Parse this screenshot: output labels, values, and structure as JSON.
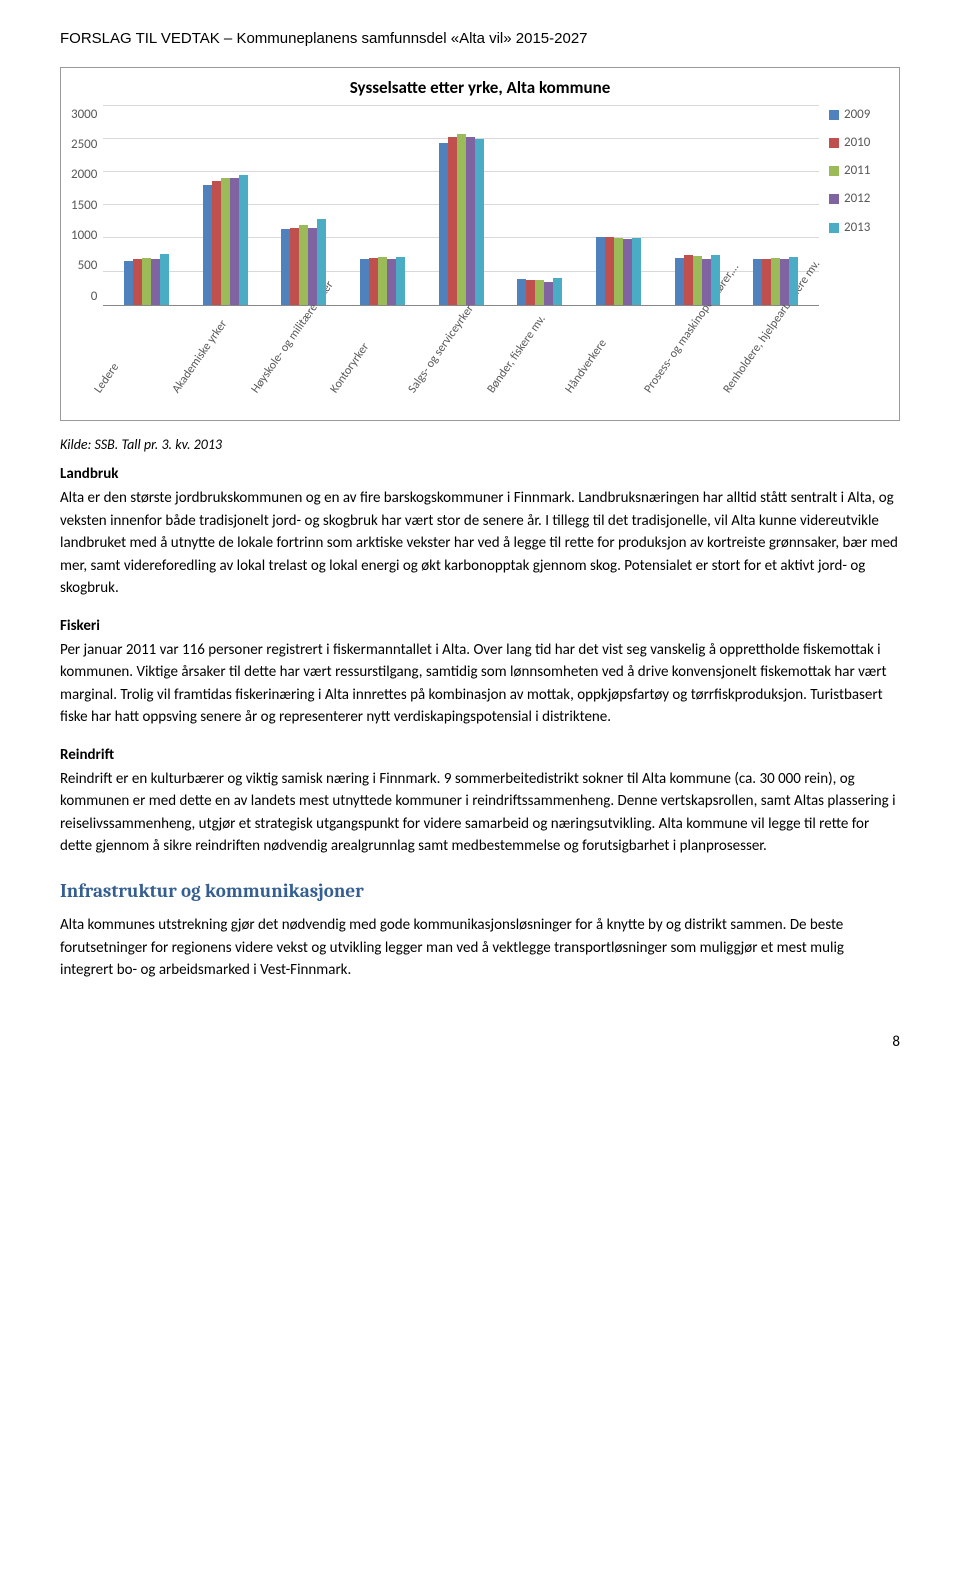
{
  "header": "FORSLAG TIL VEDTAK – Kommuneplanens samfunnsdel «Alta vil» 2015-2027",
  "chart": {
    "title": "Sysselsatte etter yrke, Alta kommune",
    "ylim": [
      0,
      3000
    ],
    "ytick_step": 500,
    "yticks": [
      "3000",
      "2500",
      "2000",
      "1500",
      "1000",
      "500",
      "0"
    ],
    "grid_color": "#d9d9d9",
    "axis_color": "#888888",
    "label_color": "#595959",
    "series": [
      {
        "label": "2009",
        "color": "#4f81bd"
      },
      {
        "label": "2010",
        "color": "#c0504d"
      },
      {
        "label": "2011",
        "color": "#9bbb59"
      },
      {
        "label": "2012",
        "color": "#8064a2"
      },
      {
        "label": "2013",
        "color": "#4bacc6"
      }
    ],
    "categories": [
      {
        "label": "Ledere",
        "values": [
          650,
          680,
          700,
          680,
          760
        ]
      },
      {
        "label": "Akademiske yrker",
        "values": [
          1800,
          1850,
          1900,
          1900,
          1950
        ]
      },
      {
        "label": "Høyskole- og militære yrker",
        "values": [
          1140,
          1150,
          1200,
          1150,
          1280
        ]
      },
      {
        "label": "Kontoryrker",
        "values": [
          680,
          700,
          710,
          680,
          720
        ]
      },
      {
        "label": "Salgs- og serviceyrker",
        "values": [
          2420,
          2520,
          2560,
          2510,
          2480
        ]
      },
      {
        "label": "Bønder, fiskere mv.",
        "values": [
          380,
          370,
          370,
          340,
          400
        ]
      },
      {
        "label": "Håndverkere",
        "values": [
          1010,
          1010,
          1000,
          980,
          1000
        ]
      },
      {
        "label": "Prosess- og maskinoperatører,…",
        "values": [
          700,
          740,
          730,
          680,
          750
        ]
      },
      {
        "label": "Renholdere, hjelpearbeidere mv.",
        "values": [
          680,
          680,
          700,
          680,
          720
        ]
      }
    ]
  },
  "source": "Kilde: SSB. Tall pr. 3. kv. 2013",
  "sections": {
    "landbruk": {
      "head": "Landbruk",
      "text": "Alta er den største jordbrukskommunen og en av fire barskogskommuner i Finnmark. Landbruksnæringen har alltid stått sentralt i Alta, og veksten innenfor både tradisjonelt jord- og skogbruk har vært stor de senere år. I tillegg til det tradisjonelle, vil Alta kunne videreutvikle landbruket med å utnytte de lokale fortrinn som arktiske vekster har ved å legge til rette for produksjon av kortreiste grønnsaker, bær med mer, samt videreforedling av lokal trelast og lokal energi og økt karbonopptak gjennom skog. Potensialet er stort for et aktivt jord- og skogbruk."
    },
    "fiskeri": {
      "head": "Fiskeri",
      "text": "Per januar 2011 var 116 personer registrert i fiskermanntallet i Alta. Over lang tid har det vist seg vanskelig å opprettholde fiskemottak i kommunen. Viktige årsaker til dette har vært ressurstilgang, samtidig som lønnsomheten ved å drive konvensjonelt fiskemottak har vært marginal. Trolig vil framtidas fiskerinæring i Alta innrettes på kombinasjon av mottak, oppkjøpsfartøy og tørrfiskproduksjon. Turistbasert fiske har hatt oppsving senere år og representerer nytt verdiskapingspotensial i distriktene."
    },
    "reindrift": {
      "head": "Reindrift",
      "text": "Reindrift er en kulturbærer og viktig samisk næring i Finnmark. 9 sommerbeitedistrikt sokner til Alta kommune (ca. 30 000 rein), og kommunen er med dette en av landets mest utnyttede kommuner i reindriftssammenheng. Denne vertskapsrollen, samt Altas plassering i reiselivssammenheng, utgjør et strategisk utgangspunkt for videre samarbeid og næringsutvikling. Alta kommune vil legge til rette for dette gjennom å sikre reindriften nødvendig arealgrunnlag samt medbestemmelse og forutsigbarhet i planprosesser."
    },
    "infra": {
      "head": "Infrastruktur og kommunikasjoner",
      "text": "Alta kommunes utstrekning gjør det nødvendig med gode kommunikasjonsløsninger for å knytte by og distrikt sammen. De beste forutsetninger for regionens videre vekst og utvikling legger man ved å vektlegge transportløsninger som muliggjør et mest mulig integrert bo- og arbeidsmarked i Vest-Finnmark."
    }
  },
  "page_number": "8"
}
